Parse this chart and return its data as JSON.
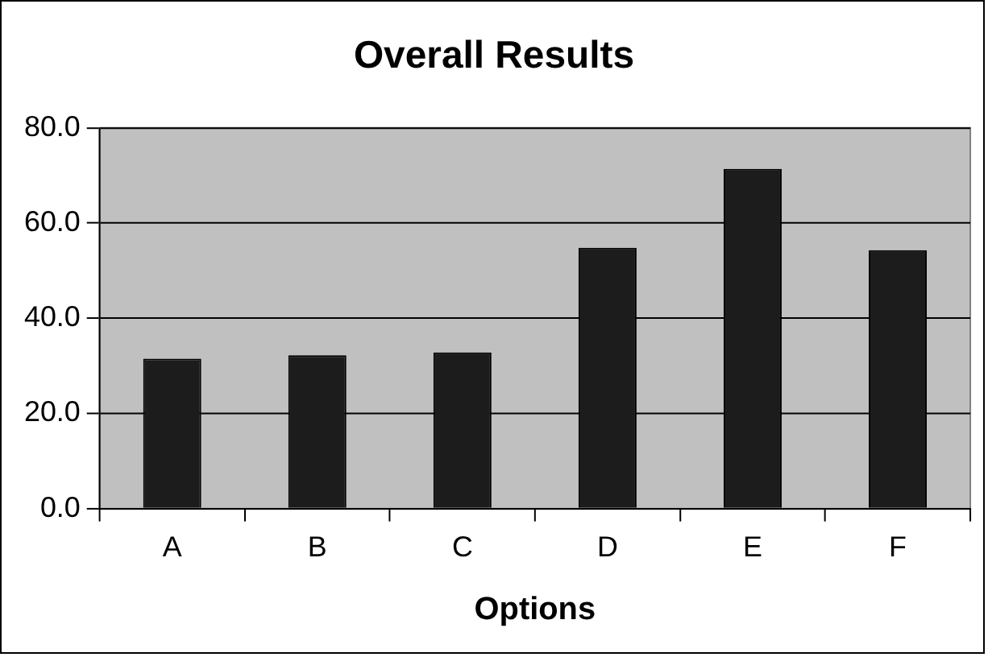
{
  "chart_data": {
    "type": "bar",
    "title": "Overall Results",
    "xlabel": "Options",
    "categories": [
      "A",
      "B",
      "C",
      "D",
      "E",
      "F"
    ],
    "values": [
      31.5,
      32.2,
      32.8,
      54.8,
      71.4,
      54.3
    ],
    "color": "#1c1c1c",
    "ylim": [
      0,
      80
    ],
    "yticks": [
      {
        "value": 0,
        "label": "0.0"
      },
      {
        "value": 20,
        "label": "20.0"
      },
      {
        "value": 40,
        "label": "40.0"
      },
      {
        "value": 60,
        "label": "60.0"
      },
      {
        "value": 80,
        "label": "80.0"
      }
    ],
    "grid": "y",
    "legend": false
  }
}
